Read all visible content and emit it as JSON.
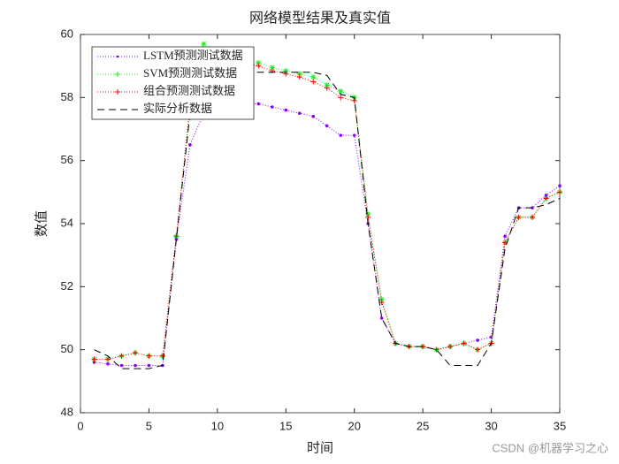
{
  "chart_data": {
    "type": "line",
    "title": "网络模型结果及真实值",
    "x_label": "时间",
    "y_label": "数值",
    "x": [
      1,
      2,
      3,
      4,
      5,
      6,
      7,
      8,
      9,
      10,
      11,
      12,
      13,
      14,
      15,
      16,
      17,
      18,
      19,
      20,
      21,
      22,
      23,
      24,
      25,
      26,
      27,
      28,
      29,
      30,
      31,
      32,
      33,
      34,
      35
    ],
    "series": [
      {
        "name": "LSTM预测测试数据",
        "color": "#8b00ff",
        "dash": "1,2",
        "marker": "dot",
        "values": [
          49.6,
          49.55,
          49.5,
          49.5,
          49.5,
          49.5,
          53.5,
          56.5,
          57.5,
          57.8,
          57.8,
          57.8,
          57.8,
          57.7,
          57.6,
          57.5,
          57.4,
          57.1,
          56.8,
          56.8,
          54.0,
          51.0,
          50.2,
          50.1,
          50.1,
          50.0,
          50.1,
          50.2,
          50.3,
          50.4,
          53.6,
          54.5,
          54.5,
          54.9,
          55.2
        ]
      },
      {
        "name": "SVM预测测试数据",
        "color": "#22ee22",
        "dash": "1,2",
        "marker": "star",
        "values": [
          49.7,
          49.7,
          49.8,
          49.9,
          49.8,
          49.8,
          53.6,
          57.8,
          59.7,
          59.5,
          59.3,
          59.2,
          59.1,
          58.95,
          58.85,
          58.75,
          58.65,
          58.4,
          58.2,
          58.0,
          54.3,
          51.6,
          50.2,
          50.1,
          50.1,
          50.0,
          50.1,
          50.2,
          50.0,
          50.2,
          53.4,
          54.2,
          54.2,
          54.8,
          55.0
        ]
      },
      {
        "name": "组合预测测试数据",
        "color": "#ff0000",
        "dash": "1,2",
        "marker": "plus",
        "values": [
          49.7,
          49.7,
          49.8,
          49.9,
          49.8,
          49.8,
          53.6,
          57.7,
          59.4,
          59.3,
          59.2,
          59.1,
          59.0,
          58.85,
          58.75,
          58.65,
          58.5,
          58.3,
          58.0,
          57.9,
          54.2,
          51.5,
          50.2,
          50.1,
          50.1,
          50.0,
          50.1,
          50.2,
          50.0,
          50.2,
          53.4,
          54.2,
          54.2,
          54.8,
          55.0
        ]
      },
      {
        "name": "实际分析数据",
        "color": "#000000",
        "dash": "8,5",
        "marker": "none",
        "values": [
          50.0,
          49.8,
          49.4,
          49.4,
          49.4,
          49.5,
          53.5,
          57.5,
          58.8,
          58.8,
          58.8,
          58.8,
          58.8,
          58.8,
          58.8,
          58.8,
          58.8,
          58.7,
          58.1,
          58.0,
          54.0,
          51.0,
          50.2,
          50.1,
          50.1,
          50.0,
          49.5,
          49.5,
          49.5,
          50.2,
          53.2,
          54.5,
          54.5,
          54.6,
          54.8
        ]
      }
    ],
    "xlim": [
      0,
      35
    ],
    "xticks": [
      0,
      5,
      10,
      15,
      20,
      25,
      30,
      35
    ],
    "ylim": [
      48,
      60
    ],
    "yticks": [
      48,
      50,
      52,
      54,
      56,
      58,
      60
    ],
    "legend": "upper left",
    "watermark": "CSDN @机器学习之心"
  }
}
